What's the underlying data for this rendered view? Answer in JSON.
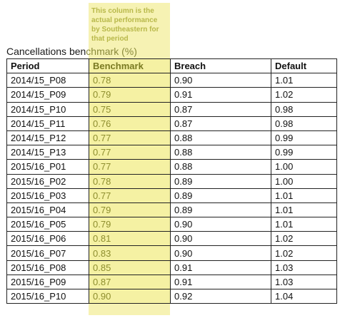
{
  "note": "This column is the\nactual performance\nby Southeastern for\nthat period",
  "caption": {
    "main": "Cancellations ben",
    "tail": "chmark (%)"
  },
  "table": {
    "headers": [
      "Period",
      "Benchmark",
      "Breach",
      "Default"
    ],
    "rows": [
      [
        "2014/15_P08",
        "0.78",
        "0.90",
        "1.01"
      ],
      [
        "2014/15_P09",
        "0.79",
        "0.91",
        "1.02"
      ],
      [
        "2014/15_P10",
        "0.75",
        "0.87",
        "0.98"
      ],
      [
        "2014/15_P11",
        "0.76",
        "0.87",
        "0.98"
      ],
      [
        "2014/15_P12",
        "0.77",
        "0.88",
        "0.99"
      ],
      [
        "2014/15_P13",
        "0.77",
        "0.88",
        "0.99"
      ],
      [
        "2015/16_P01",
        "0.77",
        "0.88",
        "1.00"
      ],
      [
        "2015/16_P02",
        "0.78",
        "0.89",
        "1.00"
      ],
      [
        "2015/16_P03",
        "0.77",
        "0.89",
        "1.01"
      ],
      [
        "2015/16_P04",
        "0.79",
        "0.89",
        "1.01"
      ],
      [
        "2015/16_P05",
        "0.79",
        "0.90",
        "1.01"
      ],
      [
        "2015/16_P06",
        "0.81",
        "0.90",
        "1.02"
      ],
      [
        "2015/16_P07",
        "0.83",
        "0.90",
        "1.02"
      ],
      [
        "2015/16_P08",
        "0.85",
        "0.91",
        "1.03"
      ],
      [
        "2015/16_P09",
        "0.87",
        "0.91",
        "1.03"
      ],
      [
        "2015/16_P10",
        "0.90",
        "0.92",
        "1.04"
      ]
    ]
  },
  "colors": {
    "highlight": "#f4f0a6",
    "highlight_text": "#8e8e2e"
  }
}
